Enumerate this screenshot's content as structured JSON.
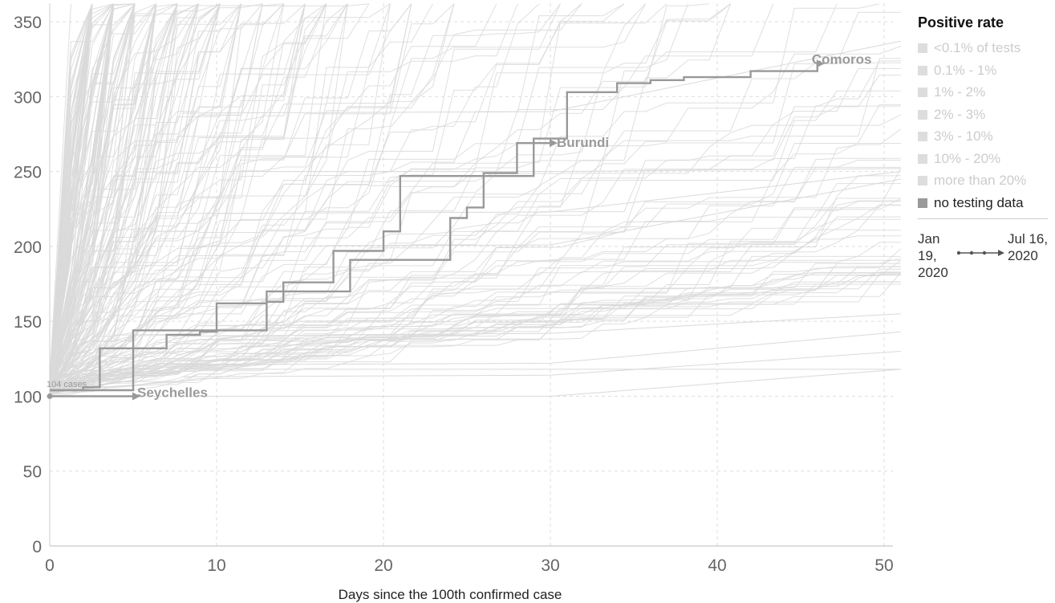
{
  "chart_data": {
    "type": "line",
    "xlabel": "Days since the 100th confirmed case",
    "ylabel": "",
    "xlim": [
      0,
      51
    ],
    "ylim": [
      0,
      360
    ],
    "x_ticks": [
      0,
      10,
      20,
      30,
      40,
      50
    ],
    "y_ticks": [
      0,
      50,
      100,
      150,
      200,
      250,
      300,
      350
    ],
    "grid": true,
    "legend": {
      "title": "Positive rate",
      "position": "right",
      "items": [
        {
          "label": "<0.1% of tests",
          "color": "#dddddd"
        },
        {
          "label": "0.1% - 1%",
          "color": "#dddddd"
        },
        {
          "label": "1% - 2%",
          "color": "#dddddd"
        },
        {
          "label": "2% - 3%",
          "color": "#dddddd"
        },
        {
          "label": "3% - 10%",
          "color": "#dddddd"
        },
        {
          "label": "10% - 20%",
          "color": "#dddddd"
        },
        {
          "label": "more than 20%",
          "color": "#dddddd"
        },
        {
          "label": "no testing data",
          "color": "#999999"
        }
      ]
    },
    "timeline": {
      "start": "Jan 19, 2020",
      "end": "Jul 16, 2020"
    },
    "highlight_color": "#999999",
    "background_color": "#d9d9d9",
    "series": [
      {
        "name": "Comoros",
        "x": [
          0,
          2,
          3,
          5,
          7,
          9,
          10,
          13,
          14,
          16,
          17,
          18,
          20,
          21,
          23,
          24,
          25,
          26,
          27,
          28,
          29,
          30,
          31,
          33,
          34,
          35,
          36,
          37,
          38,
          40,
          41,
          42,
          43,
          45,
          46
        ],
        "y": [
          104,
          106,
          132,
          132,
          141,
          143,
          162,
          163,
          176,
          176,
          197,
          197,
          210,
          247,
          247,
          247,
          247,
          247,
          247,
          247,
          272,
          272,
          303,
          303,
          309,
          309,
          311,
          311,
          313,
          313,
          313,
          317,
          317,
          317,
          322
        ]
      },
      {
        "name": "Burundi",
        "x": [
          0,
          4,
          5,
          12,
          13,
          17,
          18,
          23,
          24,
          25,
          26,
          27,
          28,
          29,
          30
        ],
        "y": [
          104,
          104,
          144,
          144,
          170,
          170,
          191,
          191,
          219,
          226,
          249,
          249,
          269,
          269,
          269
        ]
      },
      {
        "name": "Seychelles",
        "x": [
          0,
          5
        ],
        "y": [
          100,
          100
        ]
      }
    ],
    "annotations": [
      {
        "text": "104 cases",
        "x": 0,
        "y": 104
      }
    ]
  }
}
